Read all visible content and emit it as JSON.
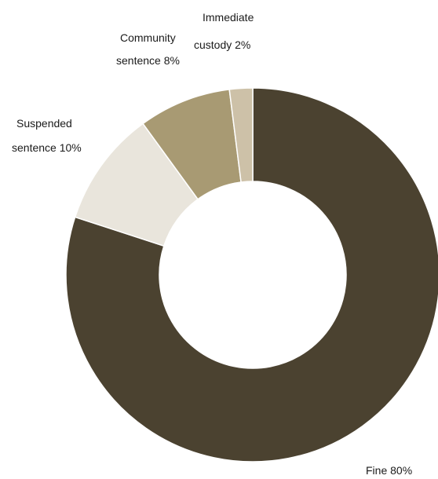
{
  "chart_data": {
    "type": "pie",
    "donut": true,
    "title": "",
    "slices": [
      {
        "label": "Fine",
        "value": 80,
        "display": "Fine 80%",
        "color": "#4b4230"
      },
      {
        "label": "Suspended sentence",
        "value": 10,
        "display": "Suspended sentence 10%",
        "color": "#e9e5dc"
      },
      {
        "label": "Community sentence",
        "value": 8,
        "display": "Community sentence 8%",
        "color": "#a89a73"
      },
      {
        "label": "Immediate custody",
        "value": 2,
        "display": "Immediate custody 2%",
        "color": "#cdc1a8"
      }
    ],
    "legend": "none"
  }
}
